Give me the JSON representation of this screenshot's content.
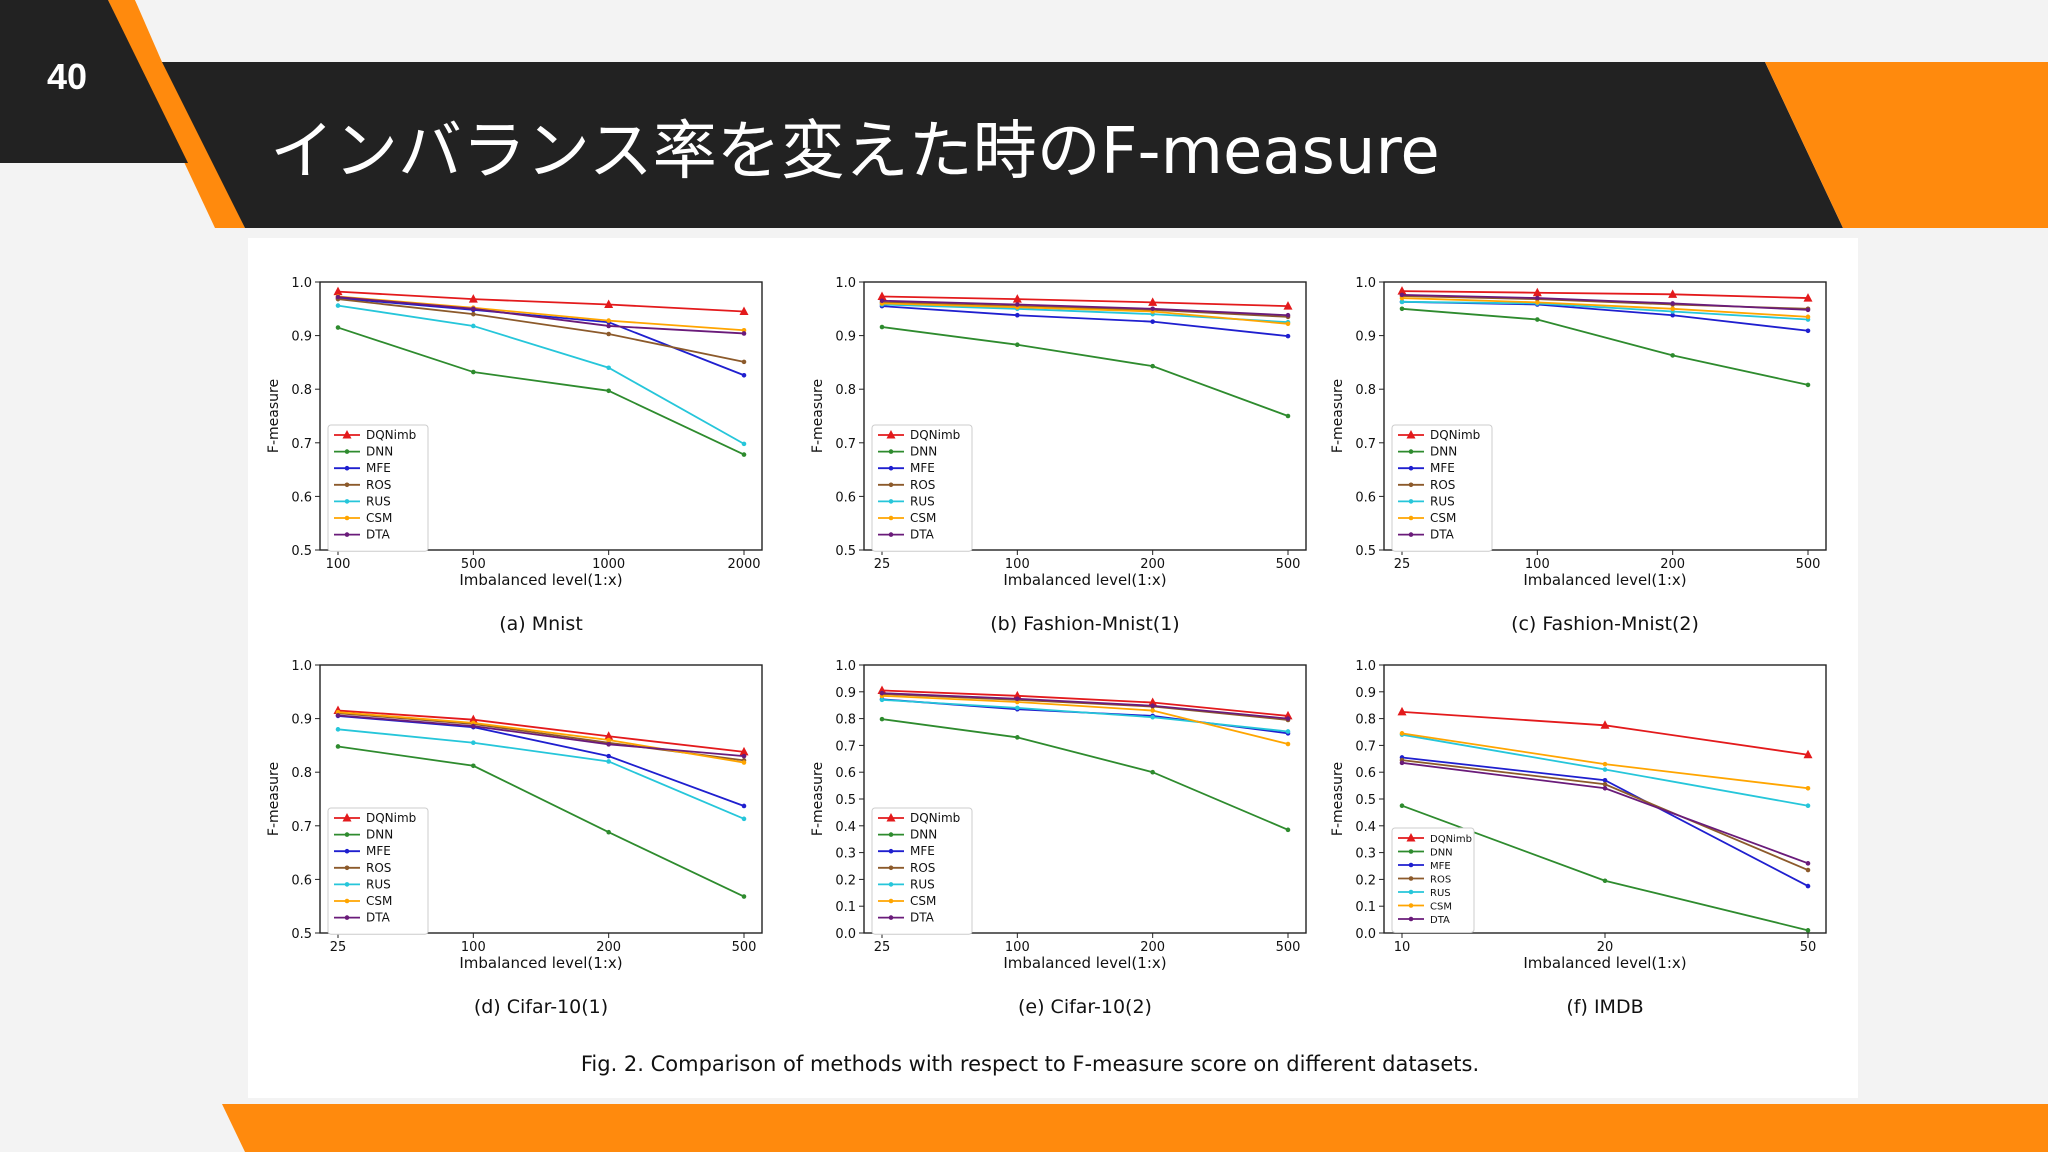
{
  "slide": {
    "number": "40",
    "title": "インバランス率を変えた時のF-measure",
    "colors": {
      "dark": "#222222",
      "accent": "#ff8a0d",
      "background": "#f3f3f3"
    }
  },
  "legend": [
    "DQNimb",
    "DNN",
    "MFE",
    "ROS",
    "RUS",
    "CSM",
    "DTA"
  ],
  "series_colors": {
    "DQNimb": "#e31a1c",
    "DNN": "#2e8b2e",
    "MFE": "#1f1fcf",
    "ROS": "#8c5a2b",
    "RUS": "#26c6da",
    "CSM": "#ffa500",
    "DTA": "#6a1b7a"
  },
  "figure_caption": "Fig. 2.  Comparison of methods with respect to F-measure score on different datasets.",
  "chart_data": [
    {
      "type": "line",
      "caption": "(a) Mnist",
      "xlabel": "Imbalanced level(1:x)",
      "ylabel": "F-measure",
      "categories": [
        "100",
        "500",
        "1000",
        "2000"
      ],
      "yticks": [
        "0.5",
        "0.6",
        "0.7",
        "0.8",
        "0.9",
        "1.0"
      ],
      "ylim": [
        0.5,
        1.0
      ],
      "series": [
        {
          "name": "DQNimb",
          "values": [
            0.982,
            0.968,
            0.958,
            0.945
          ]
        },
        {
          "name": "DNN",
          "values": [
            0.915,
            0.832,
            0.797,
            0.678
          ]
        },
        {
          "name": "MFE",
          "values": [
            0.97,
            0.948,
            0.925,
            0.826
          ]
        },
        {
          "name": "ROS",
          "values": [
            0.968,
            0.94,
            0.903,
            0.851
          ]
        },
        {
          "name": "RUS",
          "values": [
            0.956,
            0.918,
            0.84,
            0.698
          ]
        },
        {
          "name": "CSM",
          "values": [
            0.973,
            0.952,
            0.928,
            0.91
          ]
        },
        {
          "name": "DTA",
          "values": [
            0.972,
            0.95,
            0.918,
            0.904
          ]
        }
      ]
    },
    {
      "type": "line",
      "caption": "(b) Fashion-Mnist(1)",
      "xlabel": "Imbalanced level(1:x)",
      "ylabel": "F-measure",
      "categories": [
        "25",
        "100",
        "200",
        "500"
      ],
      "yticks": [
        "0.5",
        "0.6",
        "0.7",
        "0.8",
        "0.9",
        "1.0"
      ],
      "ylim": [
        0.5,
        1.0
      ],
      "series": [
        {
          "name": "DQNimb",
          "values": [
            0.973,
            0.968,
            0.962,
            0.955
          ]
        },
        {
          "name": "DNN",
          "values": [
            0.916,
            0.883,
            0.843,
            0.75
          ]
        },
        {
          "name": "MFE",
          "values": [
            0.955,
            0.938,
            0.926,
            0.899
          ]
        },
        {
          "name": "ROS",
          "values": [
            0.962,
            0.955,
            0.948,
            0.935
          ]
        },
        {
          "name": "RUS",
          "values": [
            0.958,
            0.95,
            0.94,
            0.925
          ]
        },
        {
          "name": "CSM",
          "values": [
            0.96,
            0.953,
            0.945,
            0.922
          ]
        },
        {
          "name": "DTA",
          "values": [
            0.965,
            0.958,
            0.95,
            0.938
          ]
        }
      ]
    },
    {
      "type": "line",
      "caption": "(c) Fashion-Mnist(2)",
      "xlabel": "Imbalanced level(1:x)",
      "ylabel": "F-measure",
      "categories": [
        "25",
        "100",
        "200",
        "500"
      ],
      "yticks": [
        "0.5",
        "0.6",
        "0.7",
        "0.8",
        "0.9",
        "1.0"
      ],
      "ylim": [
        0.5,
        1.0
      ],
      "series": [
        {
          "name": "DQNimb",
          "values": [
            0.983,
            0.98,
            0.977,
            0.97
          ]
        },
        {
          "name": "DNN",
          "values": [
            0.95,
            0.93,
            0.863,
            0.808
          ]
        },
        {
          "name": "MFE",
          "values": [
            0.963,
            0.958,
            0.938,
            0.909
          ]
        },
        {
          "name": "ROS",
          "values": [
            0.974,
            0.968,
            0.958,
            0.95
          ]
        },
        {
          "name": "RUS",
          "values": [
            0.963,
            0.96,
            0.945,
            0.93
          ]
        },
        {
          "name": "CSM",
          "values": [
            0.97,
            0.962,
            0.95,
            0.935
          ]
        },
        {
          "name": "DTA",
          "values": [
            0.976,
            0.97,
            0.96,
            0.948
          ]
        }
      ]
    },
    {
      "type": "line",
      "caption": "(d) Cifar-10(1)",
      "xlabel": "Imbalanced level(1:x)",
      "ylabel": "F-measure",
      "categories": [
        "25",
        "100",
        "200",
        "500"
      ],
      "yticks": [
        "0.5",
        "0.6",
        "0.7",
        "0.8",
        "0.9",
        "1.0"
      ],
      "ylim": [
        0.5,
        1.0
      ],
      "series": [
        {
          "name": "DQNimb",
          "values": [
            0.915,
            0.898,
            0.867,
            0.838
          ]
        },
        {
          "name": "DNN",
          "values": [
            0.848,
            0.812,
            0.688,
            0.568
          ]
        },
        {
          "name": "MFE",
          "values": [
            0.905,
            0.884,
            0.83,
            0.737
          ]
        },
        {
          "name": "ROS",
          "values": [
            0.91,
            0.89,
            0.855,
            0.822
          ]
        },
        {
          "name": "RUS",
          "values": [
            0.88,
            0.855,
            0.82,
            0.713
          ]
        },
        {
          "name": "CSM",
          "values": [
            0.912,
            0.892,
            0.86,
            0.818
          ]
        },
        {
          "name": "DTA",
          "values": [
            0.906,
            0.886,
            0.852,
            0.83
          ]
        }
      ]
    },
    {
      "type": "line",
      "caption": "(e) Cifar-10(2)",
      "xlabel": "Imbalanced level(1:x)",
      "ylabel": "F-measure",
      "categories": [
        "25",
        "100",
        "200",
        "500"
      ],
      "yticks": [
        "0.0",
        "0.1",
        "0.2",
        "0.3",
        "0.4",
        "0.5",
        "0.6",
        "0.7",
        "0.8",
        "0.9",
        "1.0"
      ],
      "ylim": [
        0.0,
        1.0
      ],
      "series": [
        {
          "name": "DQNimb",
          "values": [
            0.905,
            0.885,
            0.86,
            0.81
          ]
        },
        {
          "name": "DNN",
          "values": [
            0.798,
            0.73,
            0.6,
            0.385
          ]
        },
        {
          "name": "MFE",
          "values": [
            0.872,
            0.835,
            0.81,
            0.745
          ]
        },
        {
          "name": "ROS",
          "values": [
            0.892,
            0.87,
            0.845,
            0.795
          ]
        },
        {
          "name": "RUS",
          "values": [
            0.87,
            0.84,
            0.805,
            0.752
          ]
        },
        {
          "name": "CSM",
          "values": [
            0.885,
            0.862,
            0.83,
            0.705
          ]
        },
        {
          "name": "DTA",
          "values": [
            0.895,
            0.874,
            0.848,
            0.8
          ]
        }
      ]
    },
    {
      "type": "line",
      "caption": "(f) IMDB",
      "xlabel": "Imbalanced level(1:x)",
      "ylabel": "F-measure",
      "categories": [
        "10",
        "20",
        "50"
      ],
      "yticks": [
        "0.0",
        "0.1",
        "0.2",
        "0.3",
        "0.4",
        "0.5",
        "0.6",
        "0.7",
        "0.8",
        "0.9",
        "1.0"
      ],
      "ylim": [
        0.0,
        1.0
      ],
      "series": [
        {
          "name": "DQNimb",
          "values": [
            0.825,
            0.775,
            0.665
          ]
        },
        {
          "name": "DNN",
          "values": [
            0.475,
            0.195,
            0.01
          ]
        },
        {
          "name": "MFE",
          "values": [
            0.655,
            0.57,
            0.175
          ]
        },
        {
          "name": "ROS",
          "values": [
            0.645,
            0.555,
            0.235
          ]
        },
        {
          "name": "RUS",
          "values": [
            0.74,
            0.61,
            0.475
          ]
        },
        {
          "name": "CSM",
          "values": [
            0.745,
            0.63,
            0.54
          ]
        },
        {
          "name": "DTA",
          "values": [
            0.635,
            0.54,
            0.26
          ]
        }
      ]
    }
  ]
}
